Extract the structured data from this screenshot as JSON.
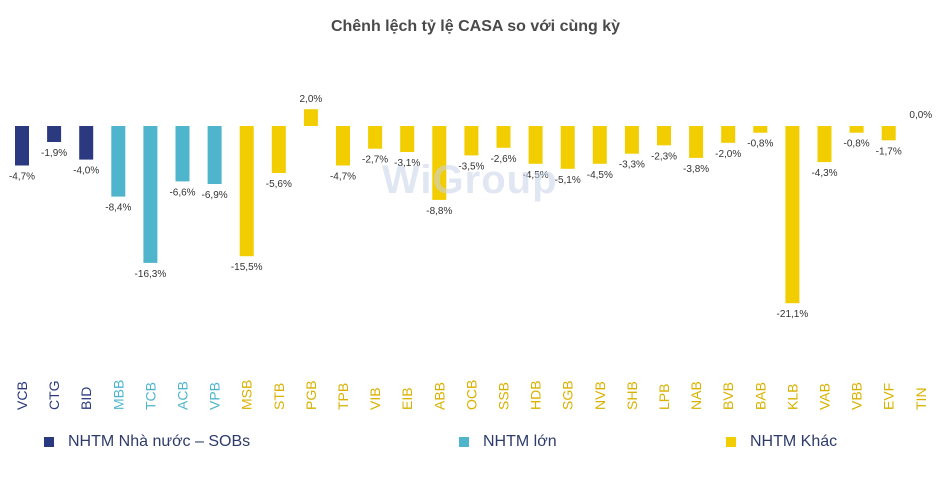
{
  "chart_data": {
    "type": "bar",
    "title": "Chênh lệch tỷ lệ CASA so với cùng kỳ",
    "xlabel": "",
    "ylabel": "",
    "ylim": [
      -21.1,
      2.0
    ],
    "categories": [
      "VCB",
      "CTG",
      "BID",
      "MBB",
      "TCB",
      "ACB",
      "VPB",
      "MSB",
      "STB",
      "PGB",
      "TPB",
      "VIB",
      "EIB",
      "ABB",
      "OCB",
      "SSB",
      "HDB",
      "SGB",
      "NVB",
      "SHB",
      "LPB",
      "NAB",
      "BVB",
      "BAB",
      "KLB",
      "VAB",
      "VBB",
      "EVF",
      "TIN"
    ],
    "values": [
      -4.7,
      -1.9,
      -4.0,
      -8.4,
      -16.3,
      -6.6,
      -6.9,
      -15.5,
      -5.6,
      2.0,
      -4.7,
      -2.7,
      -3.1,
      -8.8,
      -3.5,
      -2.6,
      -4.5,
      -5.1,
      -4.5,
      -3.3,
      -2.3,
      -3.8,
      -2.0,
      -0.8,
      -21.1,
      -4.3,
      -0.8,
      -1.7,
      0.0
    ],
    "value_labels": [
      "-4,7%",
      "-1,9%",
      "-4,0%",
      "-8,4%",
      "-16,3%",
      "-6,6%",
      "-6,9%",
      "-15,5%",
      "-5,6%",
      "2,0%",
      "-4,7%",
      "-2,7%",
      "-3,1%",
      "-8,8%",
      "-3,5%",
      "-2,6%",
      "-4,5%",
      "-5,1%",
      "-4,5%",
      "-3,3%",
      "-2,3%",
      "-3,8%",
      "-2,0%",
      "-0,8%",
      "-21,1%",
      "-4,3%",
      "-0,8%",
      "-1,7%",
      "0,0%"
    ],
    "groups": [
      "sob",
      "sob",
      "sob",
      "large",
      "large",
      "large",
      "large",
      "other",
      "other",
      "other",
      "other",
      "other",
      "other",
      "other",
      "other",
      "other",
      "other",
      "other",
      "other",
      "other",
      "other",
      "other",
      "other",
      "other",
      "other",
      "other",
      "other",
      "other",
      "other"
    ],
    "legend": [
      {
        "key": "sob",
        "label": "NHTM Nhà nước – SOBs",
        "color": "#2b3a80"
      },
      {
        "key": "large",
        "label": "NHTM lớn",
        "color": "#4fb5cc"
      },
      {
        "key": "other",
        "label": "NHTM Khác",
        "color": "#f2cd00"
      }
    ],
    "legend_position": "bottom",
    "grid": false
  },
  "watermark": "WiGroup"
}
